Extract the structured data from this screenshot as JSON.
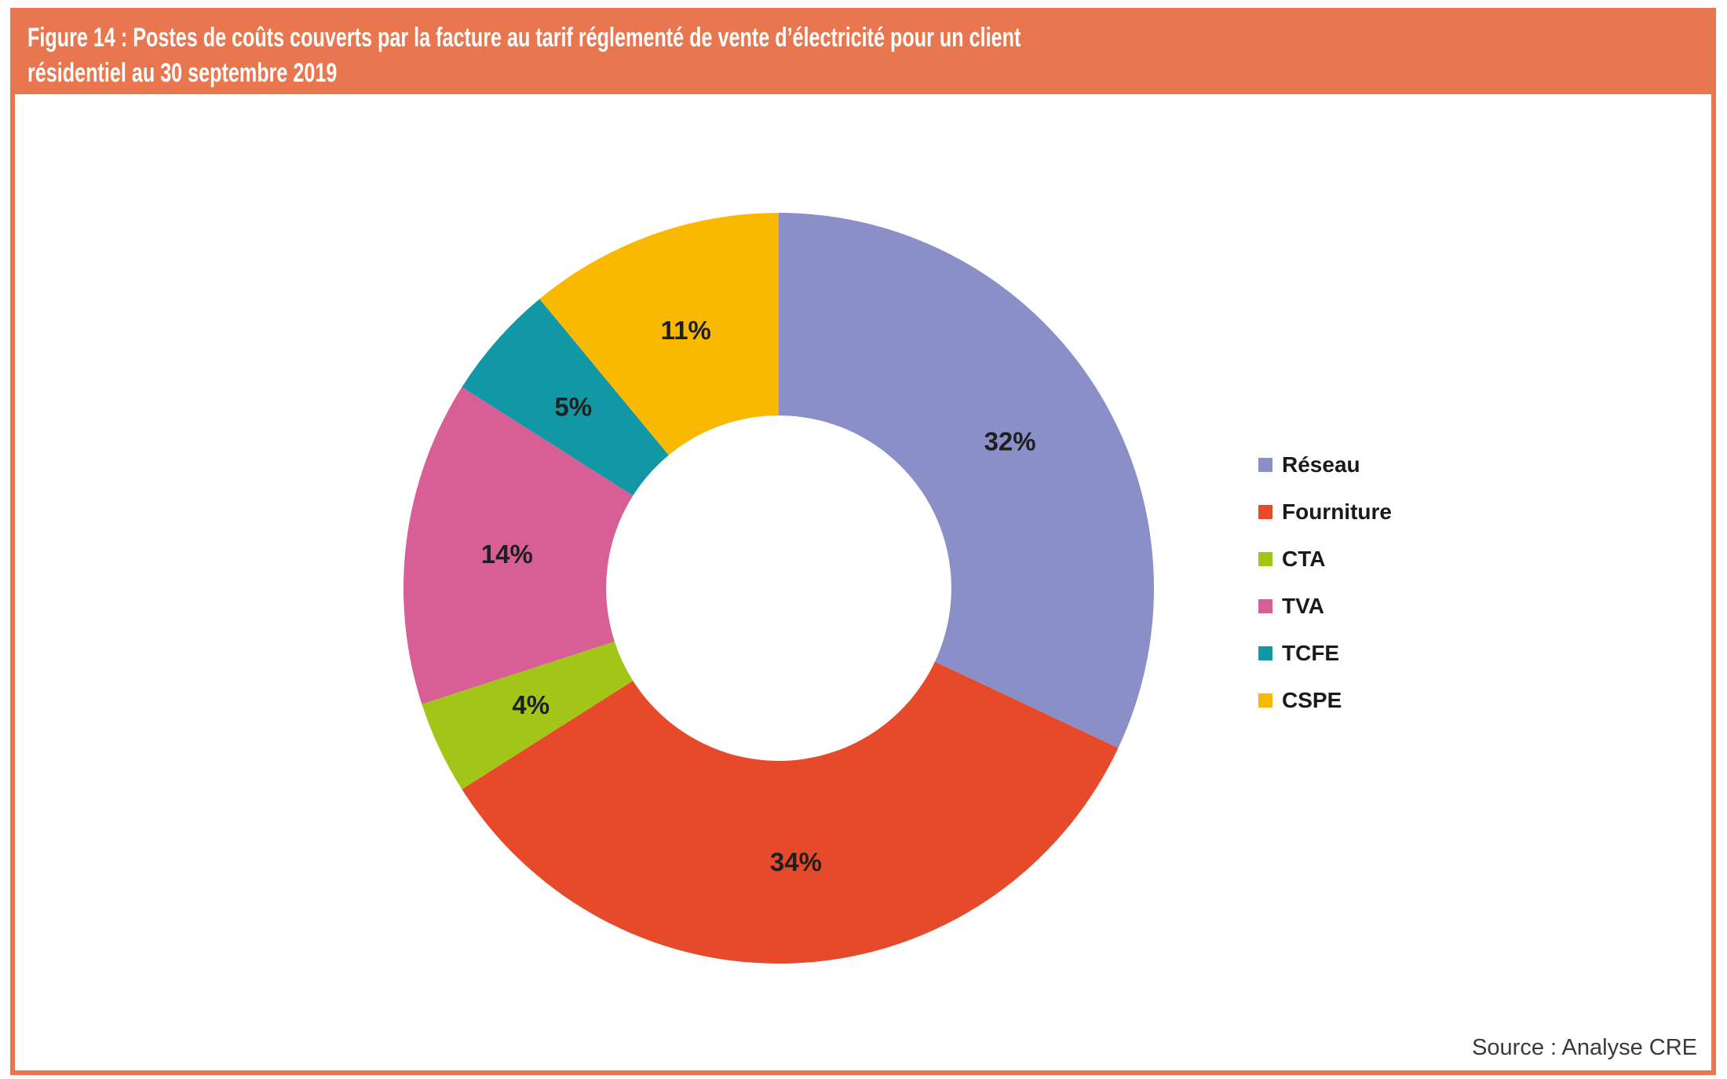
{
  "figure": {
    "title_line1": "Figure 14 : Postes de coûts couverts par la facture au tarif réglementé de vente d’électricité pour un client",
    "title_line2": "résidentiel au 30 septembre 2019",
    "source": "Source : Analyse CRE",
    "accent_color": "#E8764E"
  },
  "chart_data": {
    "type": "pie",
    "subtype": "donut",
    "title": "Postes de coûts couverts par la facture au tarif réglementé de vente d'électricité pour un client résidentiel au 30 septembre 2019",
    "unit": "%",
    "categories": [
      "Réseau",
      "Fourniture",
      "CTA",
      "TVA",
      "TCFE",
      "CSPE"
    ],
    "values": [
      32,
      34,
      4,
      14,
      5,
      11
    ],
    "labels": [
      "32%",
      "34%",
      "4%",
      "14%",
      "5%",
      "11%"
    ],
    "colors": [
      "#8B8FC7",
      "#E74A2B",
      "#A2C617",
      "#D75F95",
      "#1298A5",
      "#F8B900"
    ],
    "start_angle_deg": 0,
    "direction": "clockwise",
    "inner_radius_ratio": 0.46,
    "label_radius_ratio": 0.73,
    "legend_position": "right",
    "grid": false
  }
}
